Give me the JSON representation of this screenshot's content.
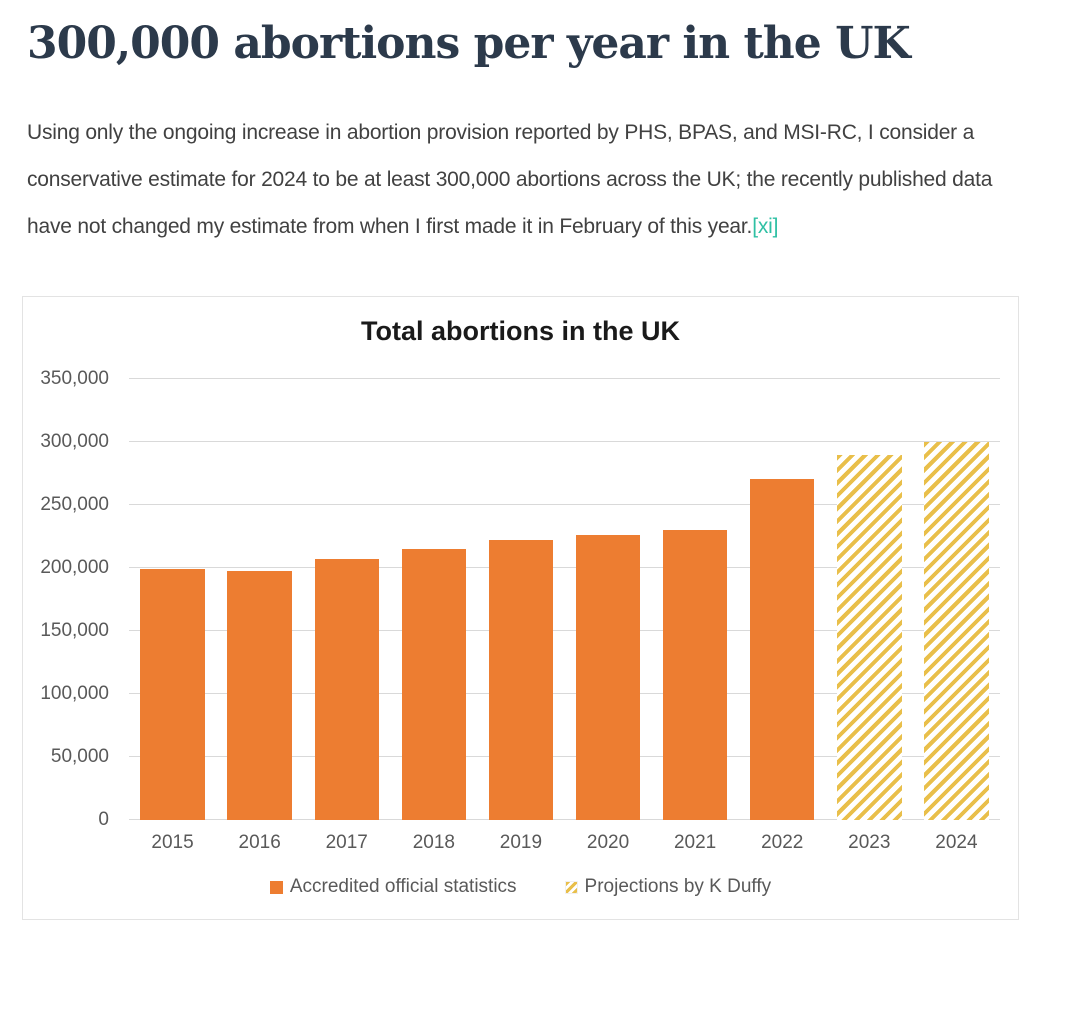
{
  "article": {
    "title": "300,000 abortions per year in the UK",
    "paragraph": "Using only the ongoing increase in abortion provision reported by PHS, BPAS, and MSI-RC, I consider a conservative estimate for 2024 to be at least 300,000 abortions across the UK; the recently published data have not changed my estimate from when I first made it in February of this year.",
    "citation_link": "[xi]"
  },
  "colors": {
    "heading": "#2c3a4b",
    "body_text": "#414141",
    "citation": "#2fc0a4",
    "chart_title": "#1a1a1a",
    "axis_text": "#595959",
    "gridline": "#d9d9d9",
    "card_border": "#e3e3e3",
    "bar_official": "#ED7D31",
    "bar_projection": "#E9BF4A"
  },
  "chart_data": {
    "type": "bar",
    "title": "Total abortions in the UK",
    "categories": [
      "2015",
      "2016",
      "2017",
      "2018",
      "2019",
      "2020",
      "2021",
      "2022",
      "2023",
      "2024"
    ],
    "series": [
      {
        "name": "Accredited official statistics",
        "style": "solid",
        "color": "#ED7D31",
        "values": [
          199000,
          198000,
          207000,
          215000,
          222000,
          226000,
          230000,
          271000,
          null,
          null
        ]
      },
      {
        "name": "Projections by K Duffy",
        "style": "hatched",
        "color": "#E9BF4A",
        "values": [
          null,
          null,
          null,
          null,
          null,
          null,
          null,
          null,
          290000,
          300000
        ]
      }
    ],
    "xlabel": "",
    "ylabel": "",
    "ylim": [
      0,
      350000
    ],
    "ytick_step": 50000,
    "yticks": [
      {
        "value": 0,
        "label": "0"
      },
      {
        "value": 50000,
        "label": "50,000"
      },
      {
        "value": 100000,
        "label": "100,000"
      },
      {
        "value": 150000,
        "label": "150,000"
      },
      {
        "value": 200000,
        "label": "200,000"
      },
      {
        "value": 250000,
        "label": "250,000"
      },
      {
        "value": 300000,
        "label": "300,000"
      },
      {
        "value": 350000,
        "label": "350,000"
      }
    ],
    "grid": true,
    "legend_position": "bottom"
  }
}
